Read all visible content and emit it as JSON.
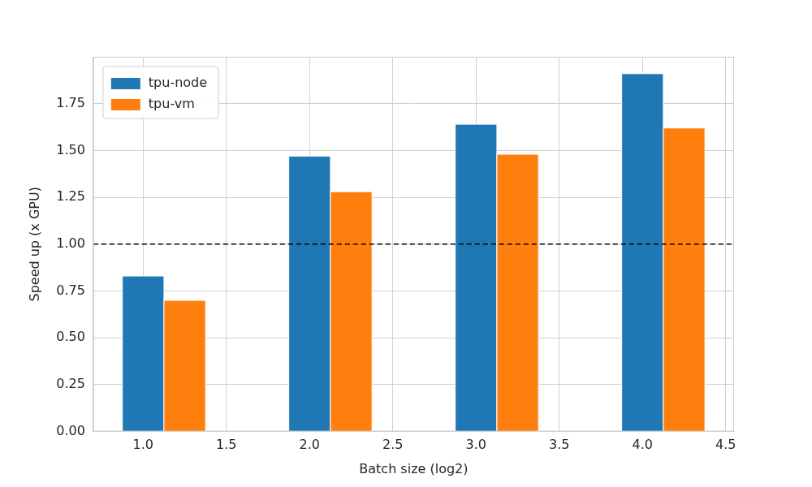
{
  "chart_data": {
    "type": "bar",
    "x_label": "Batch size (log2)",
    "y_label": "Speed up (x GPU)",
    "series": [
      {
        "name": "tpu-node",
        "color": "#1f77b4",
        "x": [
          1,
          2,
          3,
          4
        ],
        "values": [
          0.83,
          1.47,
          1.64,
          1.91
        ]
      },
      {
        "name": "tpu-vm",
        "color": "#ff7f0e",
        "x": [
          1.25,
          2.25,
          3.25,
          4.25
        ],
        "values": [
          0.7,
          1.28,
          1.48,
          1.62
        ]
      }
    ],
    "hline": 1.0,
    "xlim": [
      0.7,
      4.55
    ],
    "xticks": [
      {
        "value": 1,
        "label": "1.0"
      },
      {
        "value": 1.5,
        "label": "1.5"
      },
      {
        "value": 2,
        "label": "2.0"
      },
      {
        "value": 2.5,
        "label": "2.5"
      },
      {
        "value": 3,
        "label": "3.0"
      },
      {
        "value": 3.5,
        "label": "3.5"
      },
      {
        "value": 4,
        "label": "4.0"
      },
      {
        "value": 4.5,
        "label": "4.5"
      }
    ],
    "ylim": [
      0,
      2.0
    ],
    "yticks": [
      {
        "value": 0,
        "label": "0.00"
      },
      {
        "value": 0.25,
        "label": "0.25"
      },
      {
        "value": 0.5,
        "label": "0.50"
      },
      {
        "value": 0.75,
        "label": "0.75"
      },
      {
        "value": 1,
        "label": "1.00"
      },
      {
        "value": 1.25,
        "label": "1.25"
      },
      {
        "value": 1.5,
        "label": "1.50"
      },
      {
        "value": 1.75,
        "label": "1.75"
      }
    ],
    "grid": true,
    "legend": "upper left"
  }
}
